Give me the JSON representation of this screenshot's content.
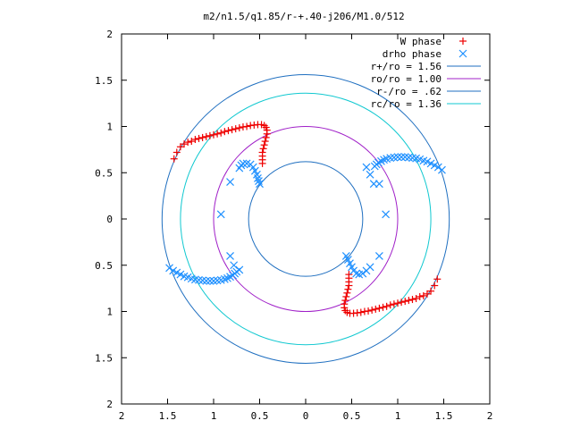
{
  "chart_data": {
    "type": "scatter",
    "title": "m2/n1.5/q1.85/r-+.40-j206/M1.0/512",
    "xlabel": "",
    "ylabel": "",
    "xlim": [
      -2,
      2
    ],
    "ylim": [
      -2,
      2
    ],
    "grid": false,
    "legend_position": "top-right",
    "x_tick_labels": [
      "2",
      "1.5",
      "1",
      "0.5",
      "0",
      "0.5",
      "1",
      "1.5",
      "2"
    ],
    "y_tick_labels": [
      "2",
      "1.5",
      "1",
      "0.5",
      "0",
      "0.5",
      "1",
      "1.5",
      "2"
    ],
    "x_ticks": [
      -2,
      -1.5,
      -1,
      -0.5,
      0,
      0.5,
      1,
      1.5,
      2
    ],
    "y_ticks": [
      -2,
      -1.5,
      -1,
      -0.5,
      0,
      0.5,
      1,
      1.5,
      2
    ],
    "circles": [
      {
        "name": "r+/ro = 1.56",
        "r": 1.56,
        "color": "#1f6fc0"
      },
      {
        "name": "ro/ro = 1.00",
        "r": 1.0,
        "color": "#a020c8"
      },
      {
        "name": "r-/ro = .62",
        "r": 0.62,
        "color": "#1f6fc0"
      },
      {
        "name": "rc/ro = 1.36",
        "r": 1.36,
        "color": "#10c8d0"
      }
    ],
    "series": [
      {
        "name": "W phase",
        "marker": "plus",
        "color": "#ee0000",
        "segments": [
          [
            [
              -1.43,
              0.65
            ],
            [
              -1.4,
              0.72
            ],
            [
              -1.36,
              0.78
            ],
            [
              -1.32,
              0.81
            ],
            [
              -1.28,
              0.83
            ],
            [
              -1.24,
              0.84
            ],
            [
              -1.2,
              0.86
            ],
            [
              -1.16,
              0.87
            ],
            [
              -1.12,
              0.88
            ],
            [
              -1.08,
              0.89
            ],
            [
              -1.04,
              0.9
            ],
            [
              -1.0,
              0.91
            ],
            [
              -0.96,
              0.92
            ],
            [
              -0.92,
              0.93
            ],
            [
              -0.88,
              0.945
            ],
            [
              -0.84,
              0.955
            ],
            [
              -0.8,
              0.965
            ],
            [
              -0.76,
              0.975
            ],
            [
              -0.72,
              0.985
            ],
            [
              -0.68,
              0.995
            ],
            [
              -0.64,
              1.0
            ],
            [
              -0.6,
              1.01
            ],
            [
              -0.56,
              1.015
            ],
            [
              -0.52,
              1.02
            ],
            [
              -0.48,
              1.02
            ],
            [
              -0.45,
              1.01
            ],
            [
              -0.43,
              0.99
            ],
            [
              -0.42,
              0.96
            ],
            [
              -0.42,
              0.92
            ],
            [
              -0.43,
              0.88
            ],
            [
              -0.44,
              0.84
            ],
            [
              -0.45,
              0.8
            ],
            [
              -0.46,
              0.76
            ],
            [
              -0.47,
              0.72
            ],
            [
              -0.47,
              0.68
            ],
            [
              -0.47,
              0.64
            ],
            [
              -0.47,
              0.6
            ]
          ],
          [
            [
              1.43,
              -0.65
            ],
            [
              1.4,
              -0.72
            ],
            [
              1.36,
              -0.78
            ],
            [
              1.32,
              -0.81
            ],
            [
              1.28,
              -0.83
            ],
            [
              1.24,
              -0.84
            ],
            [
              1.2,
              -0.86
            ],
            [
              1.16,
              -0.87
            ],
            [
              1.12,
              -0.88
            ],
            [
              1.08,
              -0.89
            ],
            [
              1.04,
              -0.9
            ],
            [
              1.0,
              -0.91
            ],
            [
              0.96,
              -0.92
            ],
            [
              0.92,
              -0.93
            ],
            [
              0.88,
              -0.945
            ],
            [
              0.84,
              -0.955
            ],
            [
              0.8,
              -0.965
            ],
            [
              0.76,
              -0.975
            ],
            [
              0.72,
              -0.985
            ],
            [
              0.68,
              -0.995
            ],
            [
              0.64,
              -1.0
            ],
            [
              0.6,
              -1.01
            ],
            [
              0.56,
              -1.015
            ],
            [
              0.52,
              -1.02
            ],
            [
              0.48,
              -1.02
            ],
            [
              0.45,
              -1.01
            ],
            [
              0.43,
              -0.99
            ],
            [
              0.42,
              -0.96
            ],
            [
              0.42,
              -0.92
            ],
            [
              0.43,
              -0.88
            ],
            [
              0.44,
              -0.84
            ],
            [
              0.45,
              -0.8
            ],
            [
              0.46,
              -0.76
            ],
            [
              0.47,
              -0.72
            ],
            [
              0.47,
              -0.68
            ],
            [
              0.47,
              -0.64
            ],
            [
              0.47,
              -0.6
            ]
          ]
        ]
      },
      {
        "name": "drho phase",
        "marker": "cross",
        "color": "#1e90ff",
        "segments": [
          [
            [
              -1.48,
              -0.53
            ],
            [
              -1.44,
              -0.56
            ],
            [
              -1.4,
              -0.58
            ],
            [
              -1.36,
              -0.6
            ],
            [
              -1.32,
              -0.62
            ],
            [
              -1.28,
              -0.63
            ],
            [
              -1.24,
              -0.645
            ],
            [
              -1.2,
              -0.655
            ],
            [
              -1.16,
              -0.66
            ],
            [
              -1.12,
              -0.665
            ],
            [
              -1.08,
              -0.67
            ],
            [
              -1.04,
              -0.67
            ],
            [
              -1.0,
              -0.67
            ],
            [
              -0.96,
              -0.665
            ],
            [
              -0.92,
              -0.66
            ],
            [
              -0.88,
              -0.65
            ],
            [
              -0.85,
              -0.64
            ],
            [
              -0.82,
              -0.625
            ],
            [
              -0.79,
              -0.61
            ],
            [
              -0.77,
              -0.59
            ],
            [
              -0.75,
              -0.57
            ]
          ],
          [
            [
              1.48,
              0.53
            ],
            [
              1.44,
              0.56
            ],
            [
              1.4,
              0.58
            ],
            [
              1.36,
              0.6
            ],
            [
              1.32,
              0.62
            ],
            [
              1.28,
              0.63
            ],
            [
              1.24,
              0.645
            ],
            [
              1.2,
              0.655
            ],
            [
              1.16,
              0.66
            ],
            [
              1.12,
              0.665
            ],
            [
              1.08,
              0.67
            ],
            [
              1.04,
              0.67
            ],
            [
              1.0,
              0.67
            ],
            [
              0.96,
              0.665
            ],
            [
              0.92,
              0.66
            ],
            [
              0.88,
              0.65
            ],
            [
              0.85,
              0.64
            ],
            [
              0.82,
              0.625
            ],
            [
              0.79,
              0.61
            ],
            [
              0.77,
              0.59
            ],
            [
              0.75,
              0.57
            ]
          ],
          [
            [
              -0.68,
              0.6
            ],
            [
              -0.64,
              0.6
            ],
            [
              -0.6,
              0.59
            ],
            [
              -0.57,
              0.56
            ],
            [
              -0.55,
              0.52
            ],
            [
              -0.53,
              0.48
            ],
            [
              -0.52,
              0.44
            ],
            [
              -0.51,
              0.41
            ],
            [
              -0.5,
              0.38
            ]
          ],
          [
            [
              0.44,
              -0.4
            ],
            [
              0.46,
              -0.44
            ],
            [
              0.48,
              -0.48
            ],
            [
              0.5,
              -0.52
            ],
            [
              0.52,
              -0.56
            ],
            [
              0.55,
              -0.59
            ],
            [
              0.58,
              -0.6
            ],
            [
              0.62,
              -0.59
            ]
          ],
          [
            [
              0.66,
              0.56
            ],
            [
              0.7,
              0.48
            ],
            [
              0.74,
              0.38
            ],
            [
              0.8,
              0.38
            ],
            [
              0.87,
              0.05
            ],
            [
              0.8,
              -0.4
            ],
            [
              0.7,
              -0.52
            ],
            [
              0.66,
              -0.56
            ]
          ],
          [
            [
              -0.72,
              0.55
            ],
            [
              -0.82,
              0.4
            ],
            [
              -0.92,
              0.05
            ],
            [
              -0.82,
              -0.4
            ],
            [
              -0.78,
              -0.5
            ],
            [
              -0.72,
              -0.55
            ],
            [
              -0.7,
              0.58
            ]
          ]
        ]
      }
    ]
  }
}
